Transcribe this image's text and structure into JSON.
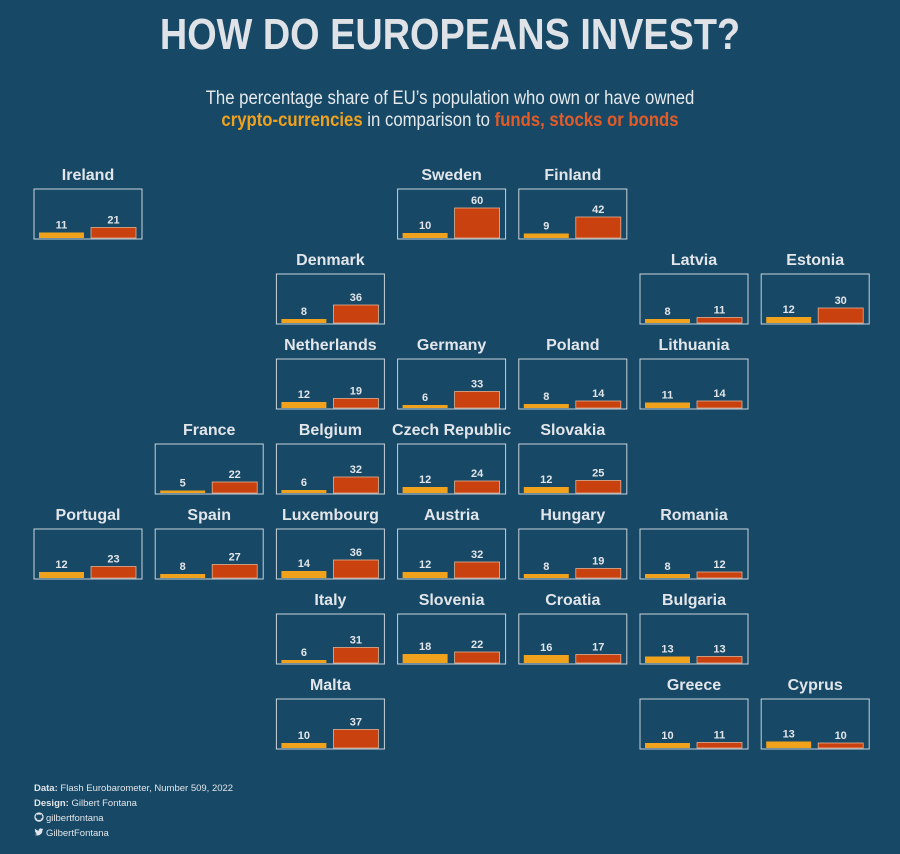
{
  "title": "HOW DO EUROPEANS INVEST?",
  "subtitle": {
    "line1": "The percentage share of EU’s population who own or have owned",
    "crypto": "crypto-currencies",
    "middle": "in comparison to",
    "funds": "funds, stocks or bonds"
  },
  "colors": {
    "background": "#174966",
    "crypto": "#f0a21c",
    "funds": "#c9410e",
    "text": "#e2e5e9"
  },
  "chart_data": {
    "type": "bar",
    "title": "HOW DO EUROPEANS INVEST?",
    "layout": "tile-grid map of EU countries, one small bar chart per country",
    "series": [
      {
        "name": "crypto-currencies",
        "color": "#f0a21c"
      },
      {
        "name": "funds, stocks or bonds",
        "color": "#c9410e"
      }
    ],
    "ylim": [
      0,
      60
    ],
    "countries": [
      {
        "name": "Ireland",
        "col": 0,
        "row": 0,
        "crypto": 11,
        "funds": 21
      },
      {
        "name": "Sweden",
        "col": 3,
        "row": 0,
        "crypto": 10,
        "funds": 60
      },
      {
        "name": "Finland",
        "col": 4,
        "row": 0,
        "crypto": 9,
        "funds": 42
      },
      {
        "name": "Denmark",
        "col": 2,
        "row": 1,
        "crypto": 8,
        "funds": 36
      },
      {
        "name": "Latvia",
        "col": 5,
        "row": 1,
        "crypto": 8,
        "funds": 11
      },
      {
        "name": "Estonia",
        "col": 6,
        "row": 1,
        "crypto": 12,
        "funds": 30
      },
      {
        "name": "Netherlands",
        "col": 2,
        "row": 2,
        "crypto": 12,
        "funds": 19
      },
      {
        "name": "Germany",
        "col": 3,
        "row": 2,
        "crypto": 6,
        "funds": 33
      },
      {
        "name": "Poland",
        "col": 4,
        "row": 2,
        "crypto": 8,
        "funds": 14
      },
      {
        "name": "Lithuania",
        "col": 5,
        "row": 2,
        "crypto": 11,
        "funds": 14
      },
      {
        "name": "France",
        "col": 1,
        "row": 3,
        "crypto": 5,
        "funds": 22
      },
      {
        "name": "Belgium",
        "col": 2,
        "row": 3,
        "crypto": 6,
        "funds": 32
      },
      {
        "name": "Czech Republic",
        "col": 3,
        "row": 3,
        "crypto": 12,
        "funds": 24
      },
      {
        "name": "Slovakia",
        "col": 4,
        "row": 3,
        "crypto": 12,
        "funds": 25
      },
      {
        "name": "Portugal",
        "col": 0,
        "row": 4,
        "crypto": 12,
        "funds": 23
      },
      {
        "name": "Spain",
        "col": 1,
        "row": 4,
        "crypto": 8,
        "funds": 27
      },
      {
        "name": "Luxembourg",
        "col": 2,
        "row": 4,
        "crypto": 14,
        "funds": 36
      },
      {
        "name": "Austria",
        "col": 3,
        "row": 4,
        "crypto": 12,
        "funds": 32
      },
      {
        "name": "Hungary",
        "col": 4,
        "row": 4,
        "crypto": 8,
        "funds": 19
      },
      {
        "name": "Romania",
        "col": 5,
        "row": 4,
        "crypto": 8,
        "funds": 12
      },
      {
        "name": "Italy",
        "col": 2,
        "row": 5,
        "crypto": 6,
        "funds": 31
      },
      {
        "name": "Slovenia",
        "col": 3,
        "row": 5,
        "crypto": 18,
        "funds": 22
      },
      {
        "name": "Croatia",
        "col": 4,
        "row": 5,
        "crypto": 16,
        "funds": 17
      },
      {
        "name": "Bulgaria",
        "col": 5,
        "row": 5,
        "crypto": 13,
        "funds": 13
      },
      {
        "name": "Malta",
        "col": 2,
        "row": 6,
        "crypto": 10,
        "funds": 37
      },
      {
        "name": "Greece",
        "col": 5,
        "row": 6,
        "crypto": 10,
        "funds": 11
      },
      {
        "name": "Cyprus",
        "col": 6,
        "row": 6,
        "crypto": 13,
        "funds": 10
      }
    ]
  },
  "footer": {
    "data_label": "Data:",
    "data_value": "Flash Eurobarometer, Number 509, 2022",
    "design_label": "Design:",
    "design_value": "Gilbert Fontana",
    "github": "gilbertfontana",
    "twitter": "GilbertFontana"
  }
}
